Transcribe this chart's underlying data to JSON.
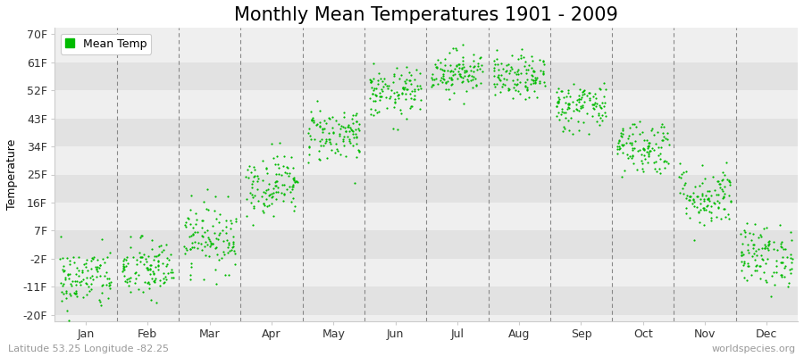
{
  "title": "Monthly Mean Temperatures 1901 - 2009",
  "ylabel": "Temperature",
  "yticks": [
    -20,
    -11,
    -2,
    7,
    16,
    25,
    34,
    43,
    52,
    61,
    70
  ],
  "ytick_labels": [
    "-20F",
    "-11F",
    "-2F",
    "7F",
    "16F",
    "25F",
    "34F",
    "43F",
    "52F",
    "61F",
    "70F"
  ],
  "ylim": [
    -22,
    72
  ],
  "months": [
    "Jan",
    "Feb",
    "Mar",
    "Apr",
    "May",
    "Jun",
    "Jul",
    "Aug",
    "Sep",
    "Oct",
    "Nov",
    "Dec"
  ],
  "month_means_F": [
    -8.5,
    -5.5,
    5.0,
    22.0,
    38.0,
    51.0,
    58.0,
    56.0,
    47.0,
    34.0,
    18.0,
    -1.0
  ],
  "month_stds_F": [
    5.0,
    5.0,
    5.5,
    5.0,
    4.5,
    4.0,
    3.5,
    3.5,
    4.0,
    4.5,
    5.0,
    5.0
  ],
  "n_years": 109,
  "dot_color": "#00BB00",
  "dot_size": 2.5,
  "bg_color": "#FFFFFF",
  "plot_bg_color": "#EFEFEF",
  "band_color_dark": "#E2E2E2",
  "band_color_light": "#EFEFEF",
  "legend_label": "Mean Temp",
  "subtitle_left": "Latitude 53.25 Longitude -82.25",
  "subtitle_right": "worldspecies.org",
  "title_fontsize": 15,
  "axis_label_fontsize": 9,
  "tick_fontsize": 9,
  "subtitle_fontsize": 8,
  "vline_color": "#888888",
  "spine_color": "#CCCCCC",
  "text_color": "#999999"
}
